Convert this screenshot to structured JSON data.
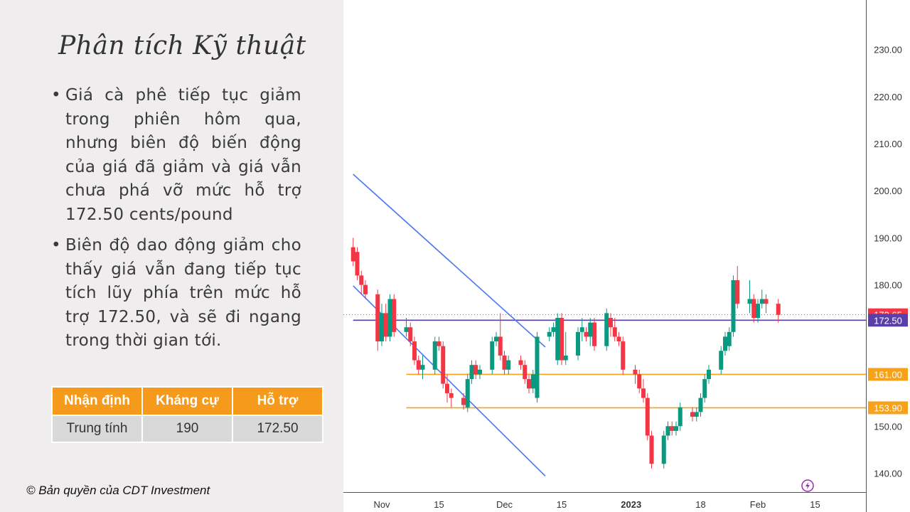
{
  "slide": {
    "title": "Phân tích Kỹ thuật",
    "bullets": [
      "Giá cà phê tiếp tục giảm trong phiên hôm qua, nhưng biên độ biến động của giá đã giảm và giá vẫn chưa phá vỡ mức hỗ trợ 172.50 cents/pound",
      "Biên độ dao động giảm cho thấy giá vẫn đang tiếp tục tích lũy phía trên mức hỗ trợ 172.50, và sẽ đi ngang trong thời gian tới."
    ],
    "table": {
      "headers": [
        "Nhận định",
        "Kháng cự",
        "Hỗ trợ"
      ],
      "row": [
        "Trung tính",
        "190",
        "172.50"
      ]
    },
    "copyright": "© Bản quyền của CDT Investment"
  },
  "chart_data": {
    "type": "candlestick",
    "y_ticks": [
      "230.00",
      "220.00",
      "210.00",
      "200.00",
      "190.00",
      "180.00",
      "150.00",
      "140.00"
    ],
    "y_tick_values": [
      230,
      220,
      210,
      200,
      190,
      180,
      150,
      140
    ],
    "ylim": [
      136,
      240.5
    ],
    "x_ticks": [
      "Nov",
      "15",
      "Dec",
      "15",
      "2023",
      "18",
      "Feb",
      "15"
    ],
    "x_tick_dates": [
      "2022-11-01",
      "2022-11-15",
      "2022-12-01",
      "2022-12-15",
      "2023-01-01",
      "2023-01-18",
      "2023-02-01",
      "2023-02-15"
    ],
    "price_labels": [
      {
        "text": "173.65",
        "value": 173.65,
        "color": "#f23645"
      },
      {
        "text": "172.50",
        "value": 172.5,
        "color": "#5b3fa8"
      },
      {
        "text": "161.00",
        "value": 161.0,
        "color": "#f7a21b"
      },
      {
        "text": "153.90",
        "value": 153.9,
        "color": "#f7a21b"
      }
    ],
    "horizontal_lines": [
      {
        "value": 172.5,
        "color": "#5b3fa8",
        "from": "2022-10-25"
      },
      {
        "value": 161.0,
        "color": "#f7a21b",
        "from": "2022-11-07"
      },
      {
        "value": 153.9,
        "color": "#f7a21b",
        "from": "2022-11-07"
      }
    ],
    "trend_lines": [
      {
        "color": "#4a78ee",
        "from": {
          "date": "2022-10-25",
          "price": 203.5
        },
        "to": {
          "date": "2022-12-11",
          "price": 166.8
        }
      },
      {
        "color": "#4a78ee",
        "from": {
          "date": "2022-10-25",
          "price": 179.8
        },
        "to": {
          "date": "2022-12-11",
          "price": 139.4
        }
      }
    ],
    "colors": {
      "up": "#089981",
      "down": "#f23645"
    },
    "candles": [
      {
        "d": "2022-10-25",
        "o": 188.0,
        "h": 190.0,
        "c": 185.0,
        "l": 184.0
      },
      {
        "d": "2022-10-26",
        "o": 187.0,
        "h": 188.0,
        "c": 182.0,
        "l": 181.0
      },
      {
        "d": "2022-10-27",
        "o": 182.0,
        "h": 183.0,
        "c": 180.0,
        "l": 178.0
      },
      {
        "d": "2022-10-28",
        "o": 180.0,
        "h": 181.0,
        "c": 178.0,
        "l": 177.0
      },
      {
        "d": "2022-10-31",
        "o": 178.0,
        "h": 179.0,
        "c": 168.0,
        "l": 166.0
      },
      {
        "d": "2022-11-01",
        "o": 168.0,
        "h": 176.0,
        "c": 174.0,
        "l": 167.0
      },
      {
        "d": "2022-11-02",
        "o": 174.0,
        "h": 176.0,
        "c": 169.0,
        "l": 168.0
      },
      {
        "d": "2022-11-03",
        "o": 169.0,
        "h": 178.0,
        "c": 177.0,
        "l": 168.0
      },
      {
        "d": "2022-11-04",
        "o": 177.0,
        "h": 178.0,
        "c": 170.0,
        "l": 169.0
      },
      {
        "d": "2022-11-07",
        "o": 170.0,
        "h": 173.0,
        "c": 171.0,
        "l": 169.0
      },
      {
        "d": "2022-11-08",
        "o": 171.0,
        "h": 172.0,
        "c": 168.0,
        "l": 167.0
      },
      {
        "d": "2022-11-09",
        "o": 168.0,
        "h": 169.0,
        "c": 164.0,
        "l": 163.0
      },
      {
        "d": "2022-11-10",
        "o": 164.0,
        "h": 165.0,
        "c": 162.0,
        "l": 161.0
      },
      {
        "d": "2022-11-11",
        "o": 162.0,
        "h": 165.0,
        "c": 163.0,
        "l": 160.0
      },
      {
        "d": "2022-11-14",
        "o": 162.0,
        "h": 169.0,
        "c": 168.0,
        "l": 161.0
      },
      {
        "d": "2022-11-15",
        "o": 168.0,
        "h": 169.0,
        "c": 167.0,
        "l": 166.0
      },
      {
        "d": "2022-11-16",
        "o": 167.0,
        "h": 168.0,
        "c": 159.0,
        "l": 158.0
      },
      {
        "d": "2022-11-17",
        "o": 159.0,
        "h": 161.0,
        "c": 157.0,
        "l": 155.0
      },
      {
        "d": "2022-11-18",
        "o": 157.0,
        "h": 158.0,
        "c": 156.0,
        "l": 154.0
      },
      {
        "d": "2022-11-21",
        "o": 156.0,
        "h": 157.0,
        "c": 154.5,
        "l": 153.5
      },
      {
        "d": "2022-11-22",
        "o": 154.0,
        "h": 161.0,
        "c": 160.0,
        "l": 153.0
      },
      {
        "d": "2022-11-23",
        "o": 160.0,
        "h": 164.0,
        "c": 163.0,
        "l": 159.0
      },
      {
        "d": "2022-11-24",
        "o": 163.0,
        "h": 164.0,
        "c": 161.0,
        "l": 160.0
      },
      {
        "d": "2022-11-25",
        "o": 161.0,
        "h": 163.0,
        "c": 162.0,
        "l": 160.0
      },
      {
        "d": "2022-11-28",
        "o": 162.0,
        "h": 169.0,
        "c": 168.0,
        "l": 161.0
      },
      {
        "d": "2022-11-29",
        "o": 168.0,
        "h": 170.0,
        "c": 169.0,
        "l": 167.0
      },
      {
        "d": "2022-11-30",
        "o": 169.0,
        "h": 174.0,
        "c": 165.0,
        "l": 164.0
      },
      {
        "d": "2022-12-01",
        "o": 165.0,
        "h": 166.0,
        "c": 162.0,
        "l": 161.0
      },
      {
        "d": "2022-12-02",
        "o": 162.0,
        "h": 165.0,
        "c": 164.0,
        "l": 161.0
      },
      {
        "d": "2022-12-05",
        "o": 164.0,
        "h": 165.0,
        "c": 163.0,
        "l": 162.0
      },
      {
        "d": "2022-12-06",
        "o": 163.0,
        "h": 164.0,
        "c": 160.0,
        "l": 159.0
      },
      {
        "d": "2022-12-07",
        "o": 160.0,
        "h": 161.0,
        "c": 158.0,
        "l": 157.0
      },
      {
        "d": "2022-12-08",
        "o": 158.0,
        "h": 162.0,
        "c": 161.0,
        "l": 157.0
      },
      {
        "d": "2022-12-09",
        "o": 156.0,
        "h": 170.0,
        "c": 169.0,
        "l": 155.0
      },
      {
        "d": "2022-12-12",
        "o": 169.0,
        "h": 171.0,
        "c": 170.0,
        "l": 168.0
      },
      {
        "d": "2022-12-13",
        "o": 170.0,
        "h": 172.0,
        "c": 171.0,
        "l": 169.0
      },
      {
        "d": "2022-12-14",
        "o": 164.0,
        "h": 174.0,
        "c": 173.0,
        "l": 163.0
      },
      {
        "d": "2022-12-15",
        "o": 173.0,
        "h": 174.0,
        "c": 164.0,
        "l": 163.0
      },
      {
        "d": "2022-12-16",
        "o": 164.0,
        "h": 170.0,
        "c": 165.0,
        "l": 163.0
      },
      {
        "d": "2022-12-19",
        "o": 165.0,
        "h": 171.0,
        "c": 170.0,
        "l": 164.0
      },
      {
        "d": "2022-12-20",
        "o": 170.0,
        "h": 173.0,
        "c": 171.0,
        "l": 168.0
      },
      {
        "d": "2022-12-21",
        "o": 170.0,
        "h": 171.0,
        "c": 169.0,
        "l": 168.0
      },
      {
        "d": "2022-12-22",
        "o": 169.0,
        "h": 173.0,
        "c": 172.0,
        "l": 167.0
      },
      {
        "d": "2022-12-23",
        "o": 172.0,
        "h": 173.0,
        "c": 167.0,
        "l": 166.0
      },
      {
        "d": "2022-12-26",
        "o": 167.0,
        "h": 175.0,
        "c": 174.0,
        "l": 166.0
      },
      {
        "d": "2022-12-27",
        "o": 173.0,
        "h": 174.0,
        "c": 171.0,
        "l": 169.0
      },
      {
        "d": "2022-12-28",
        "o": 171.0,
        "h": 173.0,
        "c": 169.0,
        "l": 168.0
      },
      {
        "d": "2022-12-29",
        "o": 169.0,
        "h": 170.0,
        "c": 168.0,
        "l": 167.0
      },
      {
        "d": "2022-12-30",
        "o": 168.0,
        "h": 169.0,
        "c": 162.0,
        "l": 161.0
      },
      {
        "d": "2023-01-02",
        "o": 162.0,
        "h": 163.0,
        "c": 161.0,
        "l": 159.0
      },
      {
        "d": "2023-01-03",
        "o": 161.0,
        "h": 162.0,
        "c": 158.0,
        "l": 157.0
      },
      {
        "d": "2023-01-04",
        "o": 158.0,
        "h": 160.0,
        "c": 156.0,
        "l": 155.0
      },
      {
        "d": "2023-01-05",
        "o": 156.0,
        "h": 157.0,
        "c": 148.0,
        "l": 147.0
      },
      {
        "d": "2023-01-06",
        "o": 148.0,
        "h": 149.0,
        "c": 142.0,
        "l": 141.0
      },
      {
        "d": "2023-01-09",
        "o": 142.0,
        "h": 149.0,
        "c": 148.0,
        "l": 141.0
      },
      {
        "d": "2023-01-10",
        "o": 148.0,
        "h": 151.0,
        "c": 150.0,
        "l": 147.0
      },
      {
        "d": "2023-01-11",
        "o": 150.0,
        "h": 151.0,
        "c": 149.0,
        "l": 148.0
      },
      {
        "d": "2023-01-12",
        "o": 149.0,
        "h": 151.0,
        "c": 150.0,
        "l": 148.0
      },
      {
        "d": "2023-01-13",
        "o": 150.0,
        "h": 155.0,
        "c": 154.0,
        "l": 149.0
      },
      {
        "d": "2023-01-16",
        "o": 153.0,
        "h": 154.0,
        "c": 152.0,
        "l": 151.0
      },
      {
        "d": "2023-01-17",
        "o": 152.0,
        "h": 154.0,
        "c": 153.0,
        "l": 151.0
      },
      {
        "d": "2023-01-18",
        "o": 153.0,
        "h": 157.0,
        "c": 156.0,
        "l": 152.0
      },
      {
        "d": "2023-01-19",
        "o": 156.0,
        "h": 161.0,
        "c": 160.0,
        "l": 155.0
      },
      {
        "d": "2023-01-20",
        "o": 160.0,
        "h": 163.0,
        "c": 162.0,
        "l": 159.0
      },
      {
        "d": "2023-01-23",
        "o": 162.0,
        "h": 167.0,
        "c": 166.0,
        "l": 161.0
      },
      {
        "d": "2023-01-24",
        "o": 166.0,
        "h": 170.0,
        "c": 169.0,
        "l": 165.0
      },
      {
        "d": "2023-01-25",
        "o": 167.0,
        "h": 171.0,
        "c": 170.0,
        "l": 166.0
      },
      {
        "d": "2023-01-26",
        "o": 170.0,
        "h": 182.0,
        "c": 181.0,
        "l": 169.0
      },
      {
        "d": "2023-01-27",
        "o": 181.0,
        "h": 184.0,
        "c": 176.0,
        "l": 175.0
      },
      {
        "d": "2023-01-30",
        "o": 176.0,
        "h": 181.0,
        "c": 177.0,
        "l": 174.0
      },
      {
        "d": "2023-01-31",
        "o": 177.0,
        "h": 178.0,
        "c": 173.0,
        "l": 172.0
      },
      {
        "d": "2023-02-01",
        "o": 173.0,
        "h": 177.0,
        "c": 176.0,
        "l": 172.0
      },
      {
        "d": "2023-02-02",
        "o": 176.0,
        "h": 179.0,
        "c": 177.0,
        "l": 175.0
      },
      {
        "d": "2023-02-03",
        "o": 177.0,
        "h": 178.0,
        "c": 176.0,
        "l": 174.0
      },
      {
        "d": "2023-02-06",
        "o": 176.0,
        "h": 177.0,
        "c": 173.65,
        "l": 172.0
      }
    ]
  }
}
